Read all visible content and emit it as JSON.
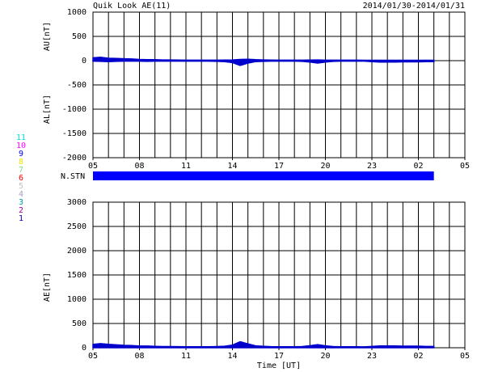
{
  "chart_data": [
    {
      "type": "area",
      "title": "Quik Look AE(11)",
      "subtitle": "2014/01/30-2014/01/31",
      "x": [
        5,
        5.5,
        6,
        6.5,
        7,
        7.5,
        8,
        8.5,
        9,
        9.5,
        10,
        10.5,
        11,
        11.5,
        12,
        12.5,
        13,
        13.5,
        14,
        14.5,
        15,
        15.5,
        16,
        16.5,
        17,
        17.5,
        18,
        18.5,
        19,
        19.5,
        20,
        20.5,
        21,
        21.5,
        22,
        22.5,
        23,
        23.5,
        24,
        24.5,
        25,
        25.5,
        26,
        26.5,
        27
      ],
      "series": [
        {
          "name": "AU[nT]",
          "color": "#0000cc",
          "values": [
            60,
            70,
            50,
            45,
            40,
            35,
            25,
            20,
            20,
            15,
            15,
            12,
            10,
            10,
            10,
            10,
            10,
            12,
            15,
            25,
            30,
            20,
            15,
            12,
            10,
            10,
            10,
            10,
            12,
            15,
            10,
            10,
            10,
            10,
            10,
            8,
            8,
            8,
            8,
            8,
            8,
            8,
            8,
            8,
            8
          ]
        },
        {
          "name": "AL[nT]",
          "color": "#0000cc",
          "values": [
            -10,
            -15,
            -20,
            -15,
            -10,
            -10,
            -10,
            -15,
            -10,
            -10,
            -10,
            -10,
            -10,
            -10,
            -10,
            -10,
            -15,
            -20,
            -40,
            -100,
            -50,
            -20,
            -15,
            -10,
            -10,
            -10,
            -10,
            -15,
            -30,
            -50,
            -30,
            -15,
            -10,
            -10,
            -10,
            -10,
            -20,
            -30,
            -30,
            -30,
            -25,
            -25,
            -25,
            -20,
            -20
          ]
        }
      ],
      "xlim": [
        5,
        29
      ],
      "xticks": [
        {
          "value": 5,
          "label": "05"
        },
        {
          "value": 8,
          "label": "08"
        },
        11,
        14,
        17,
        20,
        23,
        {
          "value": 26,
          "label": "02"
        },
        {
          "value": 29,
          "label": "05"
        }
      ],
      "xgrid": [
        5,
        6,
        7,
        8,
        9,
        10,
        11,
        12,
        13,
        14,
        15,
        16,
        17,
        18,
        19,
        20,
        21,
        22,
        23,
        24,
        25,
        26,
        27,
        28,
        29
      ],
      "ylim": [
        -2000,
        1000
      ],
      "yticks": [
        1000,
        500,
        0,
        -500,
        -1000,
        -1500,
        -2000
      ],
      "grid": true
    },
    {
      "type": "area",
      "xlabel": "Time [UT]",
      "x": [
        5,
        5.5,
        6,
        6.5,
        7,
        7.5,
        8,
        8.5,
        9,
        9.5,
        10,
        10.5,
        11,
        11.5,
        12,
        12.5,
        13,
        13.5,
        14,
        14.5,
        15,
        15.5,
        16,
        16.5,
        17,
        17.5,
        18,
        18.5,
        19,
        19.5,
        20,
        20.5,
        21,
        21.5,
        22,
        22.5,
        23,
        23.5,
        24,
        24.5,
        25,
        25.5,
        26,
        26.5,
        27
      ],
      "series": [
        {
          "name": "AE[nT]",
          "color": "#0000cc",
          "values": [
            70,
            85,
            70,
            60,
            50,
            45,
            35,
            35,
            30,
            25,
            25,
            22,
            20,
            20,
            20,
            20,
            25,
            32,
            55,
            125,
            80,
            40,
            30,
            22,
            20,
            20,
            20,
            25,
            42,
            65,
            40,
            25,
            20,
            20,
            20,
            18,
            28,
            38,
            38,
            38,
            33,
            33,
            33,
            28,
            28
          ]
        }
      ],
      "xlim": [
        5,
        29
      ],
      "xticks": [
        {
          "value": 5,
          "label": "05"
        },
        {
          "value": 8,
          "label": "08"
        },
        11,
        14,
        17,
        20,
        23,
        {
          "value": 26,
          "label": "02"
        },
        {
          "value": 29,
          "label": "05"
        }
      ],
      "xgrid": [
        5,
        6,
        7,
        8,
        9,
        10,
        11,
        12,
        13,
        14,
        15,
        16,
        17,
        18,
        19,
        20,
        21,
        22,
        23,
        24,
        25,
        26,
        27,
        28,
        29
      ],
      "ylim": [
        0,
        3000
      ],
      "yticks": [
        3000,
        2500,
        2000,
        1500,
        1000,
        500,
        0
      ],
      "grid": true
    }
  ],
  "stations": {
    "label": "N.STN",
    "x": [
      5,
      27
    ],
    "color": "#0000ff",
    "legend": [
      {
        "label": "11",
        "color": "#00e0e0"
      },
      {
        "label": "10",
        "color": "#ff00ff"
      },
      {
        "label": "9",
        "color": "#0000ff"
      },
      {
        "label": "8",
        "color": "#e8e800"
      },
      {
        "label": "7",
        "color": "#80e080"
      },
      {
        "label": "6",
        "color": "#ff0000"
      },
      {
        "label": "5",
        "color": "#c0c0c0"
      },
      {
        "label": "4",
        "color": "#a0a0c0"
      },
      {
        "label": "3",
        "color": "#00a0a0"
      },
      {
        "label": "2",
        "color": "#a000a0"
      },
      {
        "label": "1",
        "color": "#0000c0"
      }
    ]
  }
}
